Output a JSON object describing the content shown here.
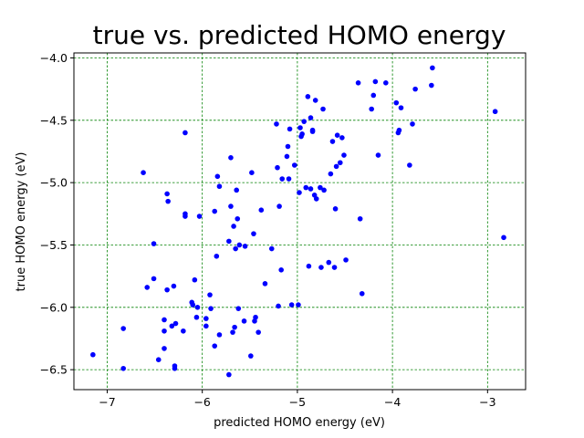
{
  "chart_data": {
    "type": "scatter",
    "title": "true vs. predicted HOMO energy",
    "xlabel": "predicted HOMO energy (eV)",
    "ylabel": "true HOMO energy (eV)",
    "xlim": [
      -7.35,
      -2.6
    ],
    "ylim": [
      -6.66,
      -3.96
    ],
    "xticks": [
      -7,
      -6,
      -5,
      -4,
      -3
    ],
    "xtick_labels": [
      "−7",
      "−6",
      "−5",
      "−4",
      "−3"
    ],
    "yticks": [
      -6.5,
      -6.0,
      -5.5,
      -5.0,
      -4.5,
      -4.0
    ],
    "ytick_labels": [
      "−6.5",
      "−6.0",
      "−5.5",
      "−5.0",
      "−4.5",
      "−4.0"
    ],
    "grid": true,
    "grid_color": "#008000",
    "marker_color": "#0000ff",
    "points": [
      [
        -7.15,
        -6.38
      ],
      [
        -6.83,
        -6.49
      ],
      [
        -6.83,
        -6.17
      ],
      [
        -6.62,
        -4.92
      ],
      [
        -6.58,
        -5.84
      ],
      [
        -6.51,
        -5.77
      ],
      [
        -6.51,
        -5.49
      ],
      [
        -6.46,
        -6.42
      ],
      [
        -6.4,
        -6.33
      ],
      [
        -6.4,
        -6.19
      ],
      [
        -6.4,
        -6.1
      ],
      [
        -6.37,
        -5.86
      ],
      [
        -6.37,
        -5.09
      ],
      [
        -6.36,
        -5.15
      ],
      [
        -6.32,
        -6.15
      ],
      [
        -6.3,
        -5.83
      ],
      [
        -6.29,
        -6.47
      ],
      [
        -6.29,
        -6.49
      ],
      [
        -6.28,
        -6.13
      ],
      [
        -6.2,
        -6.19
      ],
      [
        -6.18,
        -5.25
      ],
      [
        -6.18,
        -5.27
      ],
      [
        -6.18,
        -4.6
      ],
      [
        -6.11,
        -5.96
      ],
      [
        -6.1,
        -5.98
      ],
      [
        -6.08,
        -5.78
      ],
      [
        -6.06,
        -6.08
      ],
      [
        -6.05,
        -6.0
      ],
      [
        -6.03,
        -5.27
      ],
      [
        -5.96,
        -6.09
      ],
      [
        -5.96,
        -6.15
      ],
      [
        -5.92,
        -5.9
      ],
      [
        -5.91,
        -6.01
      ],
      [
        -5.87,
        -6.31
      ],
      [
        -5.87,
        -5.23
      ],
      [
        -5.85,
        -5.59
      ],
      [
        -5.84,
        -4.95
      ],
      [
        -5.82,
        -6.22
      ],
      [
        -5.82,
        -5.03
      ],
      [
        -5.72,
        -6.54
      ],
      [
        -5.72,
        -5.47
      ],
      [
        -5.7,
        -4.8
      ],
      [
        -5.7,
        -5.19
      ],
      [
        -5.68,
        -6.2
      ],
      [
        -5.67,
        -5.35
      ],
      [
        -5.66,
        -6.16
      ],
      [
        -5.65,
        -5.53
      ],
      [
        -5.64,
        -5.06
      ],
      [
        -5.63,
        -5.29
      ],
      [
        -5.62,
        -6.01
      ],
      [
        -5.61,
        -5.5
      ],
      [
        -5.56,
        -6.11
      ],
      [
        -5.55,
        -5.51
      ],
      [
        -5.49,
        -6.39
      ],
      [
        -5.48,
        -4.92
      ],
      [
        -5.46,
        -5.41
      ],
      [
        -5.45,
        -6.11
      ],
      [
        -5.44,
        -6.08
      ],
      [
        -5.41,
        -6.2
      ],
      [
        -5.38,
        -5.22
      ],
      [
        -5.34,
        -5.81
      ],
      [
        -5.27,
        -5.53
      ],
      [
        -5.22,
        -4.53
      ],
      [
        -5.21,
        -4.88
      ],
      [
        -5.2,
        -5.99
      ],
      [
        -5.19,
        -5.19
      ],
      [
        -5.17,
        -5.7
      ],
      [
        -5.16,
        -4.97
      ],
      [
        -5.11,
        -4.79
      ],
      [
        -5.1,
        -4.71
      ],
      [
        -5.09,
        -4.97
      ],
      [
        -5.08,
        -4.57
      ],
      [
        -5.06,
        -5.98
      ],
      [
        -5.03,
        -4.86
      ],
      [
        -4.99,
        -5.98
      ],
      [
        -4.98,
        -5.08
      ],
      [
        -4.97,
        -4.56
      ],
      [
        -4.96,
        -4.63
      ],
      [
        -4.95,
        -4.61
      ],
      [
        -4.93,
        -4.51
      ],
      [
        -4.91,
        -5.04
      ],
      [
        -4.89,
        -4.31
      ],
      [
        -4.88,
        -5.67
      ],
      [
        -4.86,
        -5.05
      ],
      [
        -4.86,
        -4.48
      ],
      [
        -4.84,
        -4.58
      ],
      [
        -4.84,
        -4.59
      ],
      [
        -4.82,
        -5.1
      ],
      [
        -4.81,
        -4.34
      ],
      [
        -4.8,
        -5.13
      ],
      [
        -4.76,
        -5.04
      ],
      [
        -4.75,
        -5.68
      ],
      [
        -4.73,
        -4.41
      ],
      [
        -4.72,
        -5.06
      ],
      [
        -4.67,
        -5.64
      ],
      [
        -4.65,
        -4.93
      ],
      [
        -4.63,
        -4.67
      ],
      [
        -4.61,
        -5.68
      ],
      [
        -4.6,
        -5.21
      ],
      [
        -4.59,
        -4.87
      ],
      [
        -4.58,
        -4.62
      ],
      [
        -4.55,
        -4.84
      ],
      [
        -4.53,
        -4.64
      ],
      [
        -4.51,
        -4.78
      ],
      [
        -4.49,
        -5.62
      ],
      [
        -4.36,
        -4.2
      ],
      [
        -4.34,
        -5.29
      ],
      [
        -4.32,
        -5.89
      ],
      [
        -4.22,
        -4.41
      ],
      [
        -4.2,
        -4.3
      ],
      [
        -4.18,
        -4.19
      ],
      [
        -4.15,
        -4.78
      ],
      [
        -4.07,
        -4.2
      ],
      [
        -3.96,
        -4.36
      ],
      [
        -3.94,
        -4.6
      ],
      [
        -3.93,
        -4.58
      ],
      [
        -3.91,
        -4.4
      ],
      [
        -3.82,
        -4.86
      ],
      [
        -3.79,
        -4.53
      ],
      [
        -3.76,
        -4.25
      ],
      [
        -3.59,
        -4.22
      ],
      [
        -3.58,
        -4.08
      ],
      [
        -2.92,
        -4.43
      ],
      [
        -2.83,
        -5.44
      ]
    ]
  }
}
